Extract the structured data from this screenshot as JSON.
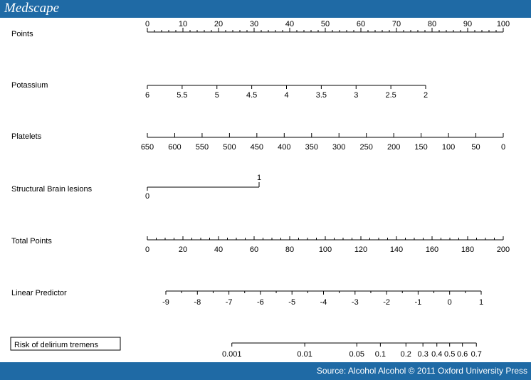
{
  "header": {
    "brand": "Medscape"
  },
  "footer": {
    "source": "Source: Alcohol Alcohol © 2011 Oxford University Press"
  },
  "chart_data": {
    "type": "nomogram",
    "title": "",
    "scales": [
      {
        "label": "Points",
        "range": [
          0,
          100
        ],
        "ticks": [
          0,
          10,
          20,
          30,
          40,
          50,
          60,
          70,
          80,
          90,
          100
        ],
        "minor_ticks": true,
        "labels_position": "above"
      },
      {
        "label": "Potassium",
        "range": [
          6,
          2
        ],
        "ticks": [
          6,
          5.5,
          5,
          4.5,
          4,
          3.5,
          3,
          2.5,
          2
        ],
        "labels_position": "below"
      },
      {
        "label": "Platelets",
        "range": [
          650,
          0
        ],
        "ticks": [
          650,
          600,
          550,
          500,
          450,
          400,
          350,
          300,
          250,
          200,
          150,
          100,
          50,
          0
        ],
        "labels_position": "below"
      },
      {
        "label": "Structural Brain lesions",
        "categories": [
          "0",
          "1"
        ]
      },
      {
        "label": "Total Points",
        "range": [
          0,
          200
        ],
        "ticks": [
          0,
          20,
          40,
          60,
          80,
          100,
          120,
          140,
          160,
          180,
          200
        ],
        "minor_ticks": true,
        "labels_position": "below"
      },
      {
        "label": "Linear Predictor",
        "range": [
          -9,
          1
        ],
        "ticks": [
          -9,
          -8,
          -7,
          -6,
          -5,
          -4,
          -3,
          -2,
          -1,
          0,
          1
        ],
        "minor_ticks": true,
        "labels_position": "below"
      },
      {
        "label": "Risk of delirium tremens",
        "ticks": [
          "0.001",
          "0.01",
          "0.05",
          "0.1",
          "0.2",
          "0.3",
          "0.4",
          "0.5",
          "0.6",
          "0.7"
        ],
        "labels_position": "below",
        "boxed_label": true
      }
    ]
  }
}
